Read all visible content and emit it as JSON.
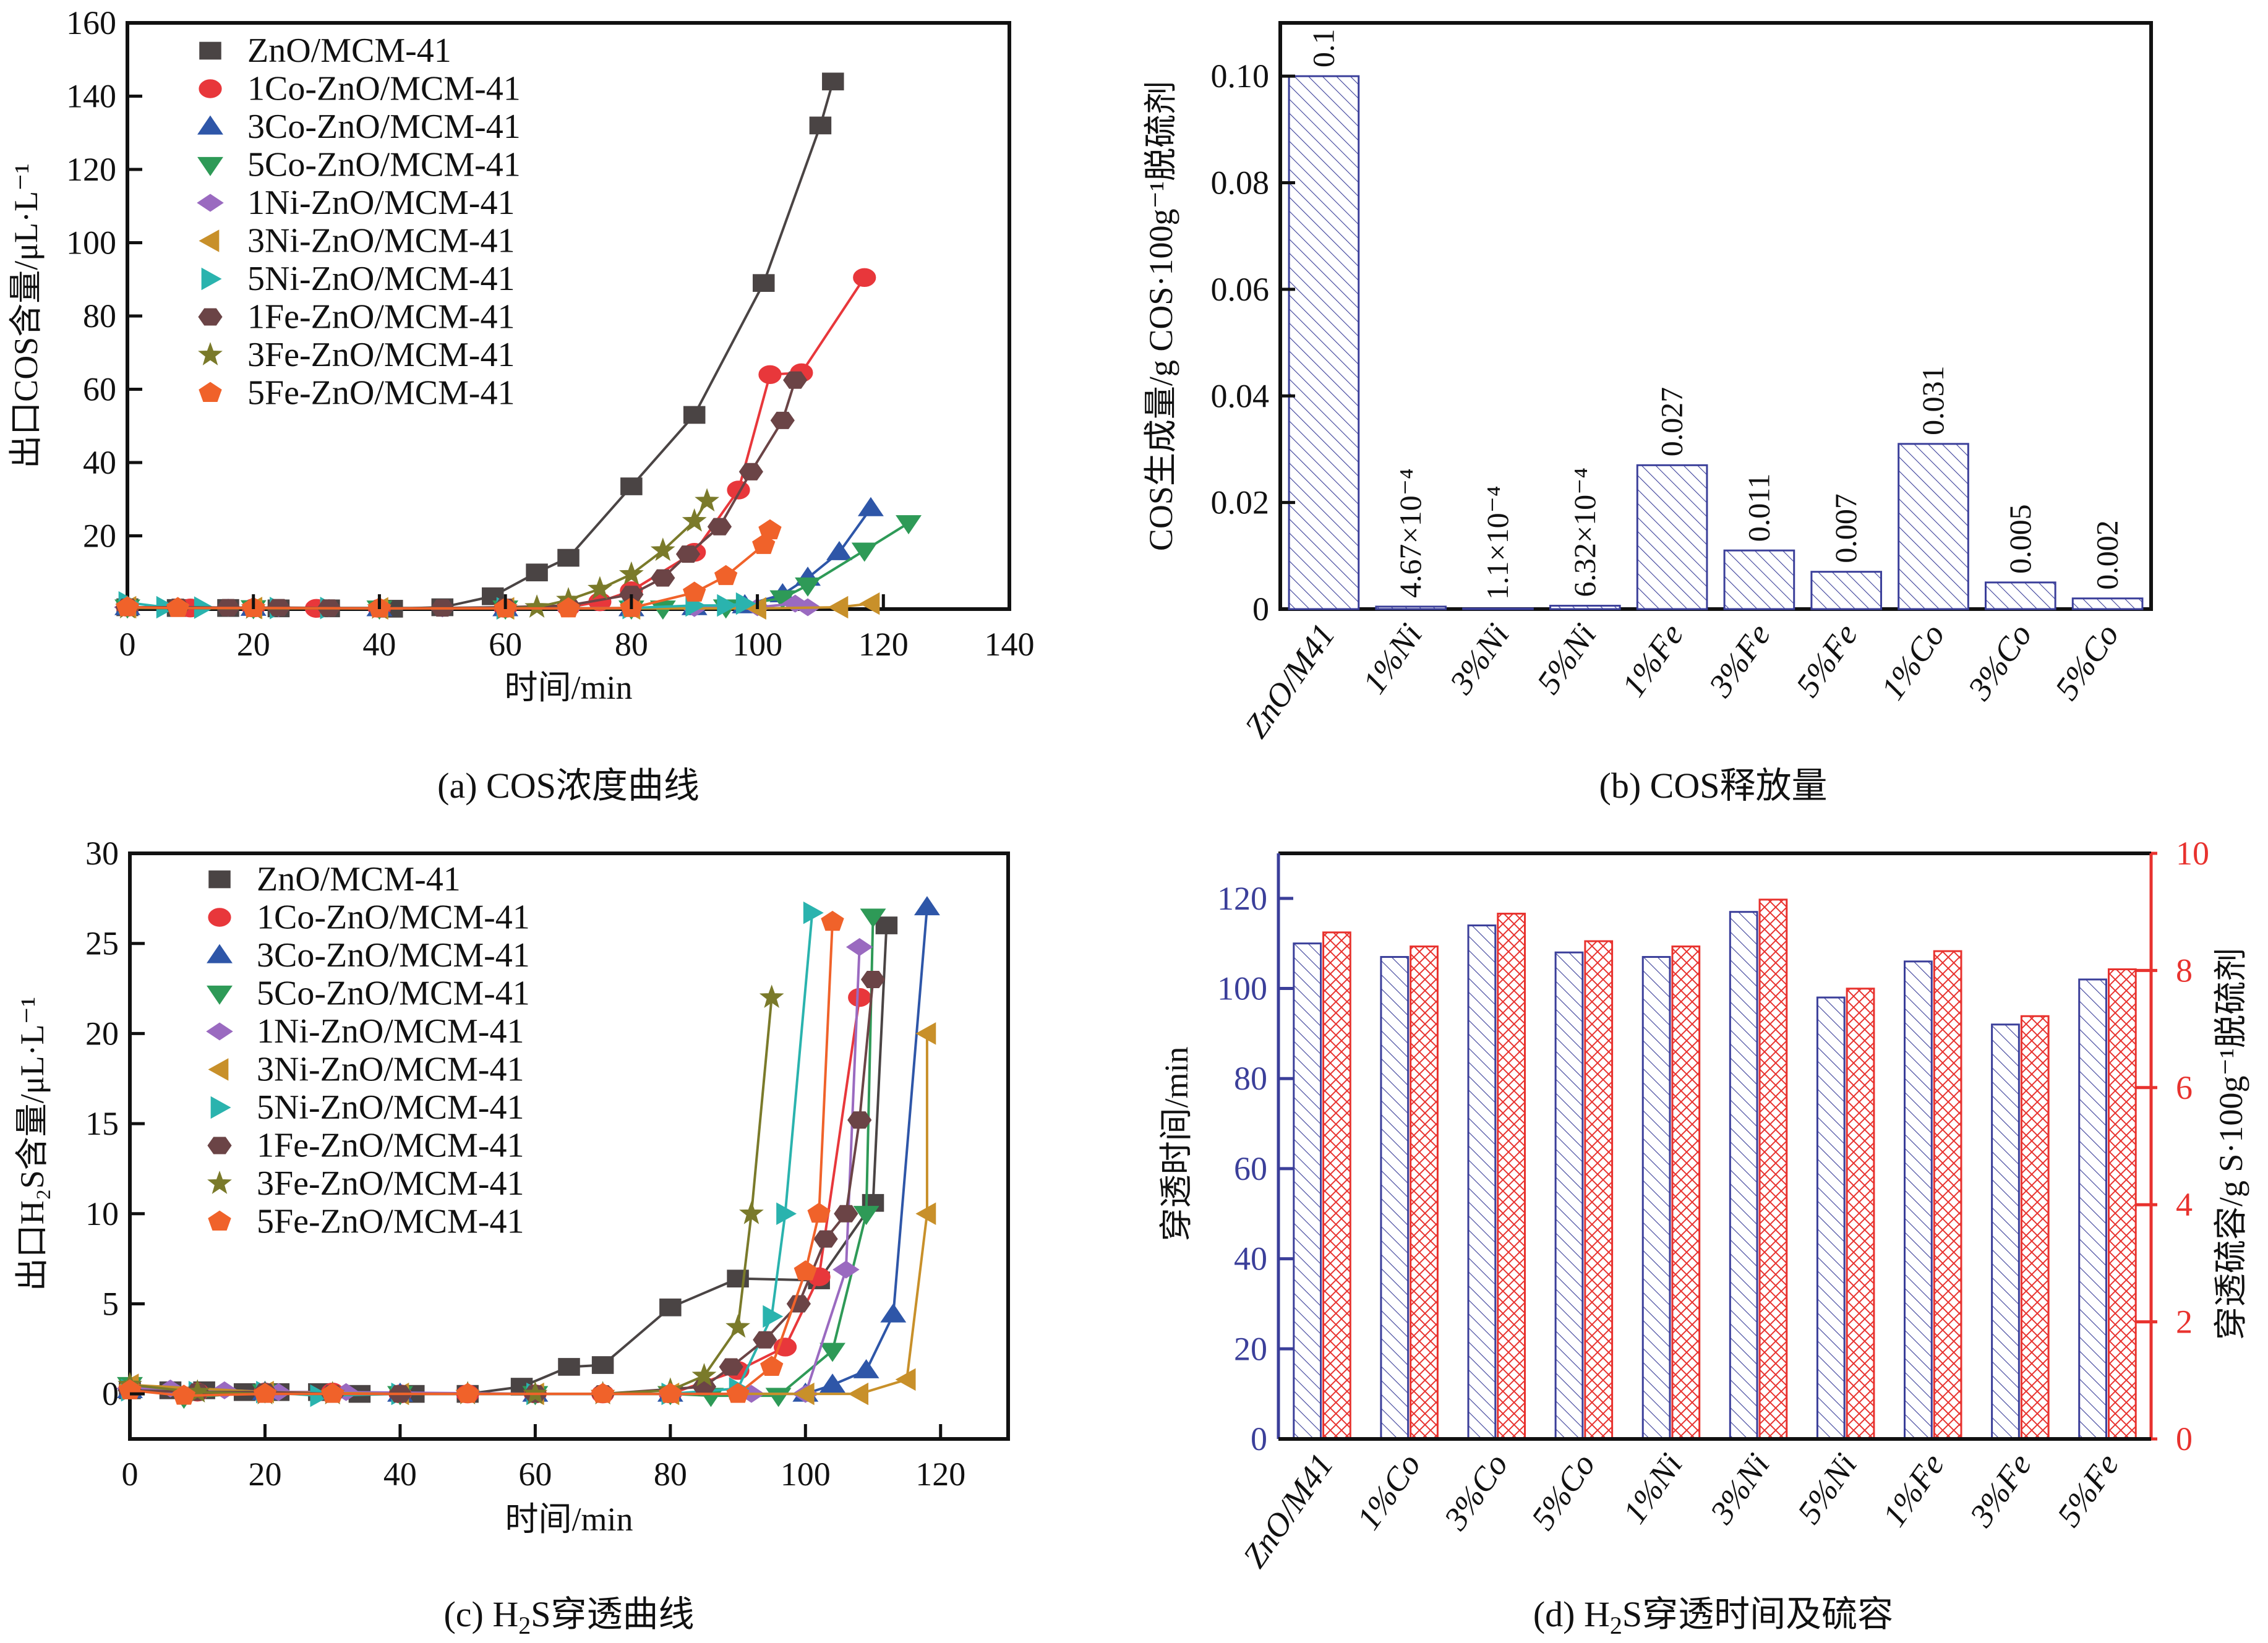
{
  "figure": {
    "captions": {
      "a": "(a) COS浓度曲线",
      "b": "(b) COS释放量",
      "c_prefix": "(c) H",
      "c_sub": "2",
      "c_suffix": "S穿透曲线",
      "d_prefix": "(d) H",
      "d_sub": "2",
      "d_suffix": "S穿透时间及硫容"
    }
  },
  "series_meta": [
    {
      "name": "ZnO/MCM-41",
      "color": "#4a4444",
      "marker": "square"
    },
    {
      "name": "1Co-ZnO/MCM-41",
      "color": "#e8373b",
      "marker": "circle"
    },
    {
      "name": "3Co-ZnO/MCM-41",
      "color": "#2e56a8",
      "marker": "triangle-up"
    },
    {
      "name": "5Co-ZnO/MCM-41",
      "color": "#2e9a57",
      "marker": "triangle-down"
    },
    {
      "name": "1Ni-ZnO/MCM-41",
      "color": "#9a6ac0",
      "marker": "diamond"
    },
    {
      "name": "3Ni-ZnO/MCM-41",
      "color": "#c8902a",
      "marker": "triangle-left"
    },
    {
      "name": "5Ni-ZnO/MCM-41",
      "color": "#2ab3ae",
      "marker": "triangle-right"
    },
    {
      "name": "1Fe-ZnO/MCM-41",
      "color": "#6b4446",
      "marker": "hexagon"
    },
    {
      "name": "3Fe-ZnO/MCM-41",
      "color": "#7a7a2a",
      "marker": "star"
    },
    {
      "name": "5Fe-ZnO/MCM-41",
      "color": "#f0622a",
      "marker": "pentagon"
    }
  ],
  "chart_data": [
    {
      "id": "a",
      "type": "line",
      "title": "",
      "xlabel": "时间/min",
      "ylabel": "出口COS含量/μL·L⁻¹",
      "xlim": [
        0,
        140
      ],
      "ylim": [
        0,
        160
      ],
      "xticks": [
        0,
        20,
        40,
        60,
        80,
        100,
        120,
        140
      ],
      "yticks": [
        20,
        40,
        60,
        80,
        100,
        120,
        140,
        160
      ],
      "legend": "top-left",
      "series": [
        {
          "name": "ZnO/MCM-41",
          "x": [
            0,
            8,
            16,
            24,
            32,
            42,
            50,
            58,
            65,
            70,
            80,
            90,
            101,
            110,
            112
          ],
          "y": [
            0.5,
            0.3,
            0.3,
            0.2,
            0.2,
            0.1,
            0.5,
            3.5,
            10,
            14,
            33.5,
            53,
            89,
            132,
            144
          ]
        },
        {
          "name": "1Co-ZnO/MCM-41",
          "x": [
            0,
            10,
            20,
            30,
            40,
            60,
            70,
            75,
            80,
            90,
            97,
            102,
            107,
            117
          ],
          "y": [
            0.5,
            0.3,
            0.3,
            0.2,
            0.2,
            0.2,
            0.5,
            2,
            5,
            15.5,
            32.5,
            64,
            64.5,
            90.5
          ]
        },
        {
          "name": "3Co-ZnO/MCM-41",
          "x": [
            0,
            20,
            40,
            60,
            80,
            90,
            98,
            104,
            108,
            113,
            118
          ],
          "y": [
            0.5,
            0.3,
            0.2,
            0.2,
            0.2,
            0.5,
            1,
            4,
            8.5,
            15.5,
            27.5
          ]
        },
        {
          "name": "5Co-ZnO/MCM-41",
          "x": [
            0,
            20,
            40,
            60,
            80,
            85,
            95,
            104,
            108,
            117,
            124
          ],
          "y": [
            0.5,
            0.3,
            0.2,
            0.2,
            0.2,
            0.2,
            0.5,
            3,
            6.5,
            16,
            23.5
          ]
        },
        {
          "name": "1Ni-ZnO/MCM-41",
          "x": [
            0,
            8,
            16,
            24,
            32,
            50,
            70,
            90,
            100,
            106,
            108
          ],
          "y": [
            0.5,
            0.5,
            0.4,
            0.3,
            0.3,
            0.2,
            0.2,
            0.3,
            0.5,
            1.5,
            0.5
          ]
        },
        {
          "name": "3Ni-ZnO/MCM-41",
          "x": [
            0,
            20,
            40,
            60,
            80,
            100,
            113,
            118
          ],
          "y": [
            0.5,
            0.3,
            0.2,
            0.2,
            0.2,
            0.2,
            0.5,
            1.5
          ]
        },
        {
          "name": "5Ni-ZnO/MCM-41",
          "x": [
            0,
            6,
            12,
            24,
            32,
            60,
            80,
            90,
            95,
            98
          ],
          "y": [
            1.8,
            0.5,
            0.4,
            0.3,
            0.3,
            0.2,
            0.3,
            1,
            1,
            1.5
          ]
        },
        {
          "name": "1Fe-ZnO/MCM-41",
          "x": [
            0,
            8,
            16,
            24,
            32,
            50,
            60,
            70,
            80,
            85,
            89,
            94,
            99,
            104,
            106
          ],
          "y": [
            0.5,
            0.5,
            0.4,
            0.4,
            0.3,
            0.3,
            0.5,
            1,
            4,
            8.5,
            15,
            22.5,
            37.5,
            51.5,
            62.5
          ]
        },
        {
          "name": "3Fe-ZnO/MCM-41",
          "x": [
            0,
            20,
            40,
            60,
            65,
            70,
            75,
            80,
            85,
            90,
            92
          ],
          "y": [
            0.3,
            0.2,
            0.2,
            0.2,
            0.5,
            2.5,
            5.5,
            9.5,
            16,
            24,
            29.5
          ]
        },
        {
          "name": "5Fe-ZnO/MCM-41",
          "x": [
            0,
            8,
            20,
            40,
            60,
            70,
            80,
            90,
            95,
            101,
            102
          ],
          "y": [
            0.5,
            0.3,
            0.3,
            0.2,
            0.2,
            0.2,
            0.3,
            4.5,
            9,
            17.5,
            21.5
          ]
        }
      ]
    },
    {
      "id": "b",
      "type": "bar",
      "title": "",
      "xlabel": "",
      "ylabel": "COS生成量/g COS·100g⁻¹脱硫剂",
      "ylim": [
        0,
        0.11
      ],
      "yticks": [
        0,
        0.02,
        0.04,
        0.06,
        0.08,
        0.1
      ],
      "ytick_labels": [
        "0",
        "0.02",
        "0.04",
        "0.06",
        "0.08",
        "0.10"
      ],
      "categories": [
        "ZnO/M41",
        "1%Ni",
        "3%Ni",
        "5%Ni",
        "1%Fe",
        "3%Fe",
        "5%Fe",
        "1%Co",
        "3%Co",
        "5%Co"
      ],
      "values": [
        0.1,
        0.000467,
        0.00011,
        0.000632,
        0.027,
        0.011,
        0.007,
        0.031,
        0.005,
        0.002
      ],
      "data_labels": [
        "0.1",
        "4.67×10⁻⁴",
        "1.1×10⁻⁴",
        "6.32×10⁻⁴",
        "0.027",
        "0.011",
        "0.007",
        "0.031",
        "0.005",
        "0.002"
      ],
      "bar_color": "#3b3f9a",
      "pattern": "diagonal-hatch"
    },
    {
      "id": "c",
      "type": "line",
      "title": "",
      "xlabel": "时间/min",
      "ylabel": "出口H₂S含量/μL·L⁻¹",
      "xlim": [
        0,
        130
      ],
      "ylim": [
        -2.5,
        30
      ],
      "xticks": [
        0,
        20,
        40,
        60,
        80,
        100,
        120
      ],
      "yticks": [
        0,
        5,
        10,
        15,
        20,
        25,
        30
      ],
      "legend": "top-left",
      "series": [
        {
          "name": "ZnO/MCM-41",
          "x": [
            0,
            6,
            11,
            17,
            22,
            28,
            34,
            42,
            50,
            58,
            65,
            70,
            80,
            90,
            102,
            110,
            112
          ],
          "y": [
            0.2,
            0.2,
            0.2,
            0.1,
            0.1,
            0.1,
            0,
            0,
            0,
            0.4,
            1.5,
            1.6,
            4.8,
            6.4,
            6.3,
            10.6,
            26
          ]
        },
        {
          "name": "1Co-ZnO/MCM-41",
          "x": [
            0,
            10,
            20,
            30,
            40,
            50,
            60,
            70,
            80,
            90,
            97,
            102,
            108
          ],
          "y": [
            0.3,
            0.1,
            0.1,
            0.1,
            0,
            0,
            0,
            0,
            0,
            1.3,
            2.6,
            6.5,
            22
          ]
        },
        {
          "name": "3Co-ZnO/MCM-41",
          "x": [
            0,
            20,
            40,
            60,
            80,
            100,
            104,
            109,
            113,
            118
          ],
          "y": [
            0.2,
            0.1,
            0,
            0,
            0,
            0,
            0.5,
            1.3,
            4.4,
            27
          ]
        },
        {
          "name": "5Co-ZnO/MCM-41",
          "x": [
            0,
            8,
            20,
            40,
            60,
            80,
            86,
            96,
            104,
            109,
            110
          ],
          "y": [
            0.5,
            -0.2,
            0.1,
            0,
            0,
            0,
            -0.1,
            -0.1,
            2.4,
            10,
            26.5
          ]
        },
        {
          "name": "1Ni-ZnO/MCM-41",
          "x": [
            0,
            6,
            14,
            22,
            32,
            60,
            80,
            92,
            100,
            106,
            108
          ],
          "y": [
            0.3,
            0.3,
            0.2,
            0.1,
            0.1,
            0,
            0,
            0,
            0,
            6.9,
            24.8
          ]
        },
        {
          "name": "3Ni-ZnO/MCM-41",
          "x": [
            0,
            20,
            40,
            60,
            80,
            100,
            108,
            115,
            118,
            118
          ],
          "y": [
            0.5,
            0.1,
            0,
            0,
            0,
            0,
            0,
            0.8,
            10,
            20
          ]
        },
        {
          "name": "5Ni-ZnO/MCM-41",
          "x": [
            0,
            10,
            20,
            28,
            40,
            60,
            80,
            90,
            95,
            97,
            101
          ],
          "y": [
            0.2,
            0.1,
            0.1,
            -0.1,
            0,
            0,
            0,
            0.3,
            4.3,
            10,
            26.7
          ]
        },
        {
          "name": "1Fe-ZnO/MCM-41",
          "x": [
            0,
            10,
            20,
            30,
            40,
            60,
            70,
            85,
            89,
            94,
            99,
            103,
            106,
            108,
            110
          ],
          "y": [
            0.2,
            0.1,
            0.1,
            0,
            0,
            0,
            0,
            0.4,
            1.5,
            3,
            5,
            8.6,
            10,
            15.2,
            23
          ]
        },
        {
          "name": "3Fe-ZnO/MCM-41",
          "x": [
            0,
            10,
            20,
            30,
            50,
            60,
            70,
            80,
            85,
            90,
            92,
            95
          ],
          "y": [
            0.5,
            0.1,
            0,
            0,
            0,
            0,
            0,
            0.2,
            1,
            3.7,
            10,
            22
          ]
        },
        {
          "name": "5Fe-ZnO/MCM-41",
          "x": [
            0,
            8,
            20,
            30,
            50,
            70,
            80,
            90,
            95,
            100,
            102,
            104
          ],
          "y": [
            0.2,
            -0.1,
            0,
            0,
            0,
            0,
            0,
            0,
            1.5,
            6.8,
            10,
            26.2
          ]
        }
      ]
    },
    {
      "id": "d",
      "type": "bar",
      "title": "",
      "xlabel": "",
      "ylabel": "穿透时间/min",
      "ylabel_right": "穿透硫容/g S·100g⁻¹脱硫剂",
      "ylim": [
        0,
        130
      ],
      "yticks": [
        0,
        20,
        40,
        60,
        80,
        100,
        120
      ],
      "ylim_right": [
        0,
        10
      ],
      "yticks_right": [
        0,
        2,
        4,
        6,
        8,
        10
      ],
      "categories": [
        "ZnO/M41",
        "1%Co",
        "3%Co",
        "5%Co",
        "1%Ni",
        "3%Ni",
        "5%Ni",
        "1%Fe",
        "3%Fe",
        "5%Fe"
      ],
      "series": [
        {
          "name": "穿透时间",
          "axis": "left",
          "color": "#3b3f9a",
          "pattern": "diagonal-hatch",
          "values": [
            110,
            107,
            114,
            108,
            107,
            117,
            98,
            106,
            92,
            102
          ]
        },
        {
          "name": "穿透硫容",
          "axis": "right",
          "color": "#e8322e",
          "pattern": "cross-hatch",
          "values": [
            8.65,
            8.41,
            8.97,
            8.5,
            8.41,
            9.21,
            7.69,
            8.33,
            7.22,
            8.02
          ]
        }
      ],
      "left_axis_color": "#3b3f9a",
      "right_axis_color": "#e8322e"
    }
  ]
}
